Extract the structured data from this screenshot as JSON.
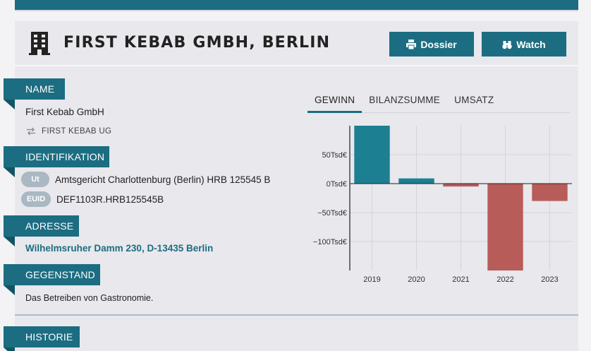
{
  "header": {
    "title": "FIRST KEBAB GMBH, BERLIN",
    "dossier_label": "Dossier",
    "watch_label": "Watch"
  },
  "sections": {
    "name": {
      "label": "NAME",
      "value": "First Kebab GmbH",
      "alias": "FIRST KEBAB UG"
    },
    "identifikation": {
      "label": "IDENTIFIKATION",
      "rows": [
        {
          "badge": "Ut",
          "value": "Amtsgericht Charlottenburg (Berlin) HRB 125545 B"
        },
        {
          "badge": "EUID",
          "value": "DEF1103R.HRB125545B"
        }
      ]
    },
    "adresse": {
      "label": "ADRESSE",
      "value": "Wilhelmsruher Damm 230, D-13435 Berlin"
    },
    "gegenstand": {
      "label": "GEGENSTAND",
      "value": "Das Betreiben von Gastronomie."
    },
    "historie": {
      "label": "HISTORIE"
    }
  },
  "tabs": [
    {
      "label": "GEWINN",
      "active": true
    },
    {
      "label": "BILANZSUMME",
      "active": false
    },
    {
      "label": "UMSATZ",
      "active": false
    }
  ],
  "colors": {
    "accent": "#1c6d81",
    "positive": "#1c7f92",
    "negative": "#b85c5a"
  },
  "chart_data": {
    "type": "bar",
    "categories": [
      "2019",
      "2020",
      "2021",
      "2022",
      "2023"
    ],
    "values": [
      100,
      9,
      -5,
      -150,
      -30
    ],
    "yticks": [
      50,
      0,
      -50,
      -100
    ],
    "ytick_labels": [
      "50Tsd€",
      "0Tsd€",
      "−50Tsd€",
      "−100Tsd€"
    ],
    "ylim": [
      -150,
      100
    ],
    "grid": true
  }
}
